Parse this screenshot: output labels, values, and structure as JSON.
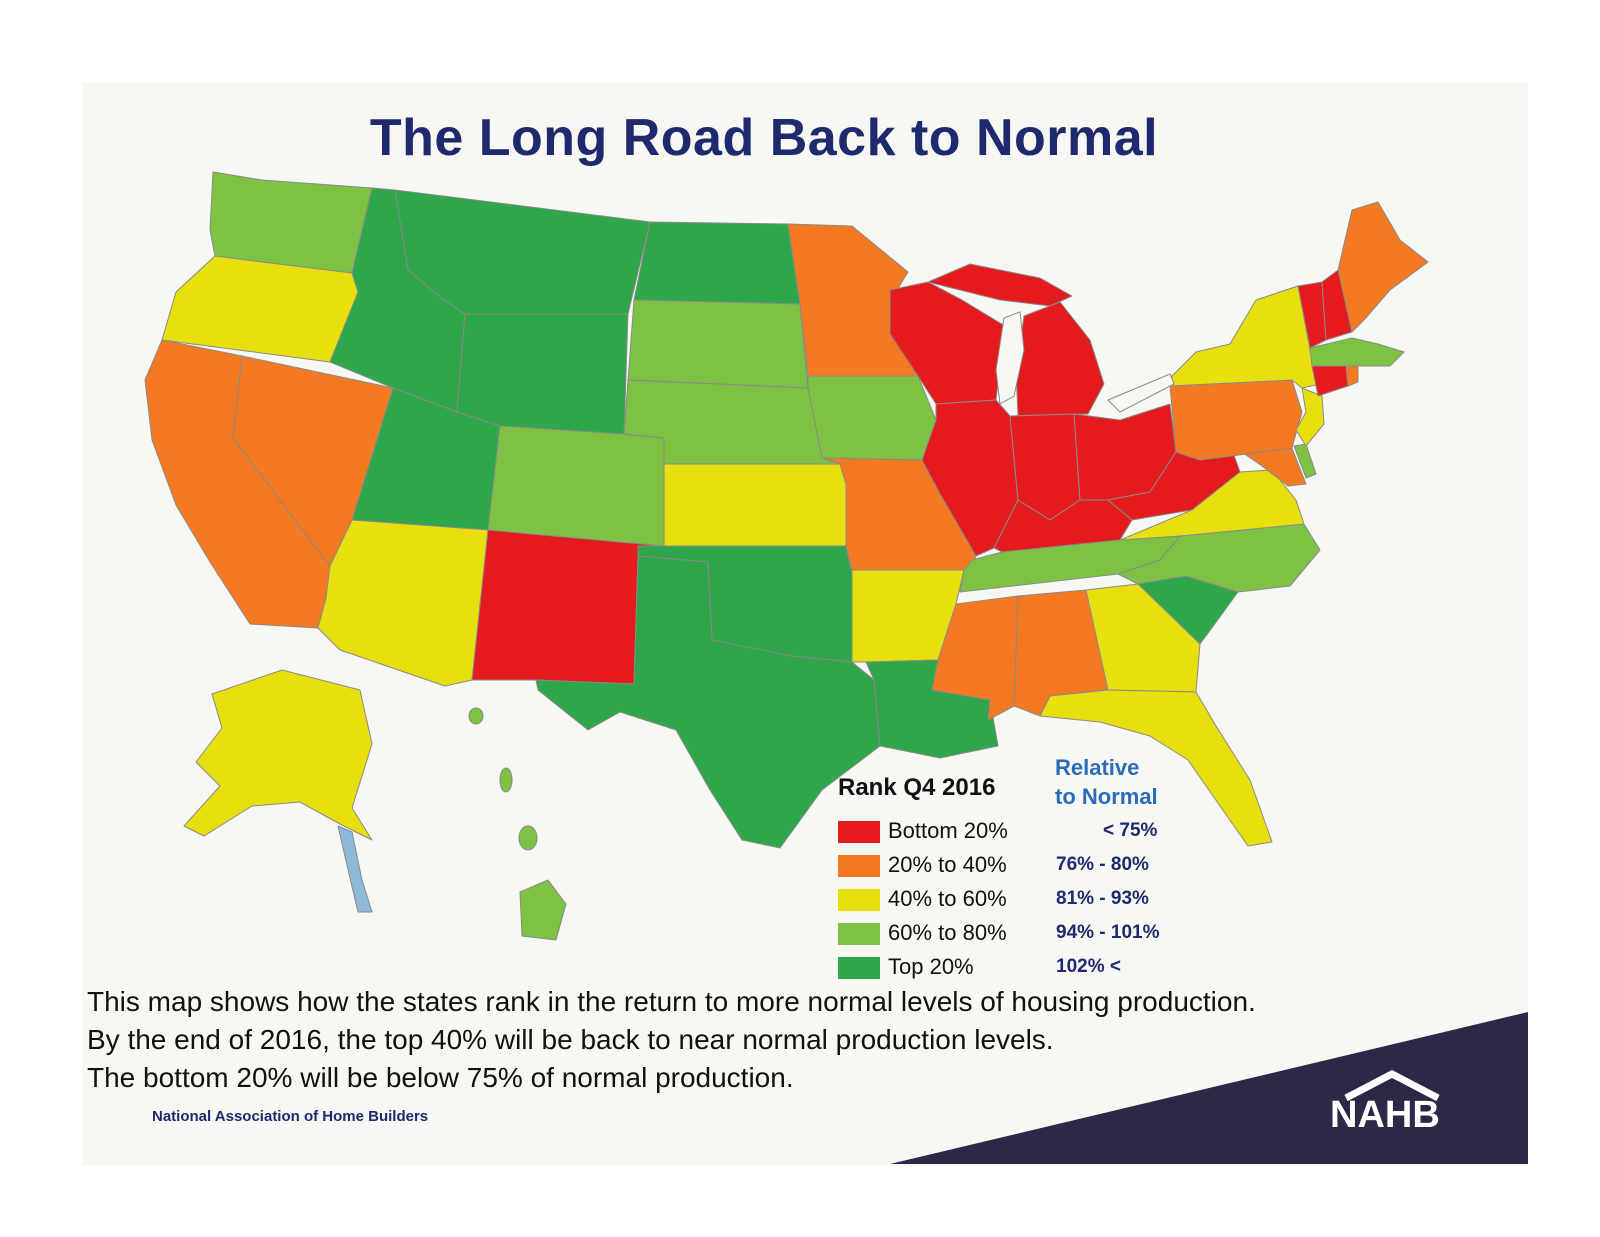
{
  "title": "The Long Road Back to Normal",
  "legend": {
    "title": "Rank Q4 2016",
    "relative_title_line1": "Relative",
    "relative_title_line2": "to Normal",
    "items": [
      {
        "label": "Bottom 20%",
        "range": "< 75%",
        "color": "#e41a1c"
      },
      {
        "label": "20% to 40%",
        "range": "76% - 80%",
        "color": "#f47920"
      },
      {
        "label": "40% to 60%",
        "range": "81% - 93%",
        "color": "#e8e00c"
      },
      {
        "label": "60% to 80%",
        "range": "94% - 101%",
        "color": "#7dc242"
      },
      {
        "label": "Top 20%",
        "range": "102% <",
        "color": "#2ea64a"
      }
    ]
  },
  "description": {
    "line1": "This map shows how the states rank in the return to more normal levels of housing production.",
    "line2": "By the end of 2016, the top 40% will be back to near normal production levels.",
    "line3": "The bottom 20% will be below 75% of normal production."
  },
  "organization": "National Association of Home Builders",
  "logo_text": "NAHB",
  "colors": {
    "title": "#1f2a6e",
    "relative": "#2a6cb8",
    "brand_band": "#2d2748"
  },
  "states": {
    "Bottom 20%": [
      "WI",
      "MI",
      "IL",
      "IN",
      "OH",
      "KY",
      "WV",
      "NM",
      "VT",
      "CT"
    ],
    "20% to 40%": [
      "CA",
      "NV",
      "MN",
      "MO",
      "PA",
      "MD",
      "MS",
      "AL",
      "ME",
      "NH"
    ],
    "40% to 60%": [
      "OR",
      "AZ",
      "KS",
      "AR",
      "NY",
      "NJ",
      "VA",
      "GA",
      "FL",
      "AK"
    ],
    "60% to 80%": [
      "WA",
      "SD",
      "NE",
      "CO",
      "IA",
      "TN",
      "NC",
      "MA",
      "DE",
      "HI"
    ],
    "Top 20%": [
      "ID",
      "MT",
      "WY",
      "UT",
      "ND",
      "TX",
      "OK",
      "LA",
      "SC"
    ]
  }
}
